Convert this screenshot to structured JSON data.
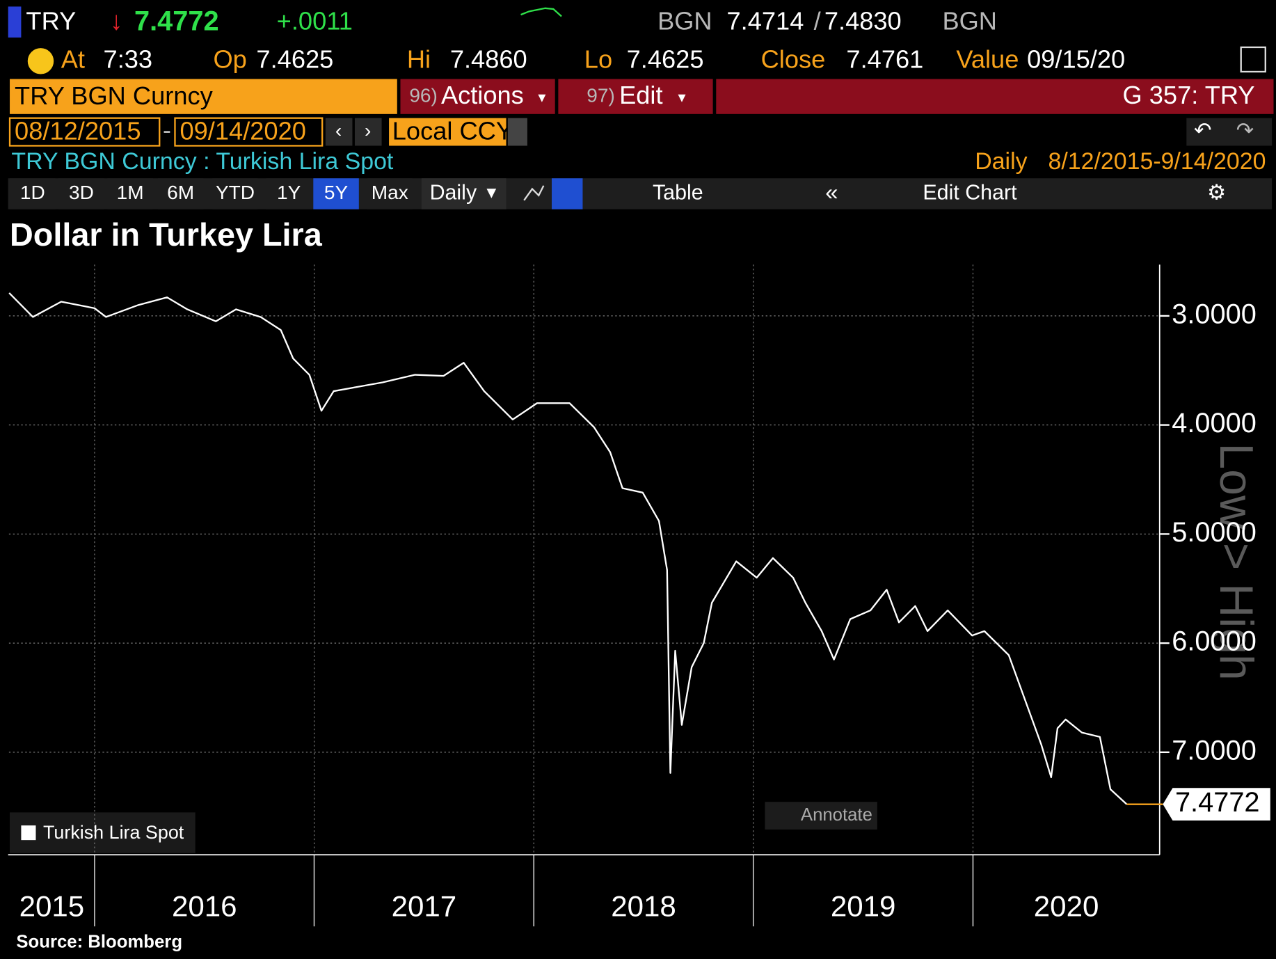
{
  "header": {
    "ticker": "TRY",
    "last": "7.4772",
    "change": "+.0011",
    "bid_source": "BGN",
    "bid": "7.4714",
    "bid_ask_separator": "/",
    "ask": "7.4830",
    "ask_source": "BGN",
    "time_label": "At",
    "time": "7:33",
    "open_label": "Op",
    "open": "7.4625",
    "hi_label": "Hi",
    "hi": "7.4860",
    "lo_label": "Lo",
    "lo": "7.4625",
    "close_label": "Close",
    "close": "7.4761",
    "value_label": "Value",
    "value_date": "09/15/20"
  },
  "toolbar": {
    "security": "TRY BGN Curncy",
    "actions_num": "96)",
    "actions": "Actions",
    "edit_num": "97)",
    "edit": "Edit",
    "page": "G 357: TRY",
    "start_date": "08/12/2015",
    "date_separator": "-",
    "end_date": "09/14/2020",
    "currency": "Local CCY",
    "description": "TRY BGN Curncy : Turkish Lira Spot",
    "frequency": "Daily",
    "range": "8/12/2015-9/14/2020",
    "periods": [
      "1D",
      "3D",
      "1M",
      "6M",
      "YTD",
      "1Y",
      "5Y",
      "Max"
    ],
    "active_period": "5Y",
    "period_frequency": "Daily",
    "table": "Table",
    "edit_chart": "Edit Chart"
  },
  "chart_data": {
    "type": "line",
    "title": "Dollar in Turkey Lira",
    "source": "Source: Bloomberg",
    "y_axis_label": "Low > High",
    "annotate": "Annotate",
    "series": [
      {
        "name": "Turkish Lira Spot",
        "color": "#ffffff",
        "last_color": "#f7a21b",
        "x": [
          2015.611,
          2015.719,
          2015.848,
          2016.0,
          2016.052,
          2016.2,
          2016.33,
          2016.422,
          2016.552,
          2016.644,
          2016.756,
          2016.848,
          2016.904,
          2016.978,
          2017.033,
          2017.089,
          2017.2,
          2017.311,
          2017.459,
          2017.589,
          2017.681,
          2017.774,
          2017.904,
          2018.015,
          2018.163,
          2018.274,
          2018.348,
          2018.404,
          2018.496,
          2018.57,
          2018.607,
          2018.622,
          2018.644,
          2018.674,
          2018.719,
          2018.774,
          2018.811,
          2018.922,
          2019.015,
          2019.089,
          2019.181,
          2019.237,
          2019.311,
          2019.367,
          2019.441,
          2019.533,
          2019.607,
          2019.663,
          2019.737,
          2019.793,
          2019.885,
          2019.996,
          2020.052,
          2020.163,
          2020.237,
          2020.311,
          2020.356,
          2020.385,
          2020.422,
          2020.496,
          2020.578,
          2020.626,
          2020.7
        ],
        "values": [
          2.79,
          3.01,
          2.87,
          2.93,
          3.01,
          2.9,
          2.83,
          2.94,
          3.05,
          2.94,
          3.01,
          3.13,
          3.39,
          3.54,
          3.87,
          3.69,
          3.65,
          3.61,
          3.54,
          3.55,
          3.43,
          3.69,
          3.95,
          3.8,
          3.8,
          4.02,
          4.25,
          4.58,
          4.62,
          4.88,
          5.33,
          7.19,
          6.07,
          6.75,
          6.22,
          6.0,
          5.63,
          5.25,
          5.4,
          5.22,
          5.4,
          5.63,
          5.89,
          6.15,
          5.78,
          5.7,
          5.51,
          5.81,
          5.66,
          5.89,
          5.7,
          5.93,
          5.89,
          6.11,
          6.52,
          6.93,
          7.23,
          6.78,
          6.7,
          6.82,
          6.86,
          7.34,
          7.4772
        ]
      }
    ],
    "xlim": [
      2015.61,
      2020.85
    ],
    "xticks": [
      2016,
      2017,
      2018,
      2019,
      2020
    ],
    "year_labels": [
      2015,
      2016,
      2017,
      2018,
      2019,
      2020
    ],
    "ylim": [
      2.53,
      7.94
    ],
    "y_inverted": true,
    "yticks": [
      {
        "value": 3,
        "label": "3.0000"
      },
      {
        "value": 4,
        "label": "4.0000"
      },
      {
        "value": 5,
        "label": "5.0000"
      },
      {
        "value": 6,
        "label": "6.0000"
      },
      {
        "value": 7,
        "label": "7.0000"
      }
    ],
    "grid": true
  }
}
